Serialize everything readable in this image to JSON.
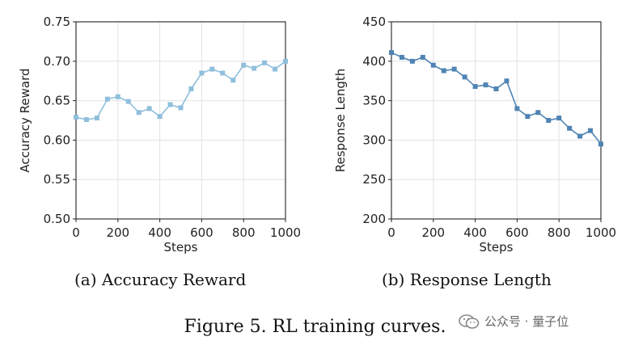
{
  "chart_data": [
    {
      "type": "line",
      "xlabel": "Steps",
      "ylabel": "Accuracy Reward",
      "xlim": [
        0,
        1000
      ],
      "ylim": [
        0.5,
        0.75
      ],
      "xticks": [
        0,
        200,
        400,
        600,
        800,
        1000
      ],
      "yticks": [
        0.5,
        0.55,
        0.6,
        0.65,
        0.7,
        0.75
      ],
      "ytick_labels": [
        "0.50",
        "0.55",
        "0.60",
        "0.65",
        "0.70",
        "0.75"
      ],
      "grid": true,
      "color": "#8fbfdc",
      "x": [
        0,
        50,
        100,
        150,
        200,
        250,
        300,
        350,
        400,
        450,
        500,
        550,
        600,
        650,
        700,
        750,
        800,
        850,
        900,
        950,
        1000
      ],
      "y": [
        0.629,
        0.626,
        0.628,
        0.652,
        0.655,
        0.649,
        0.635,
        0.64,
        0.63,
        0.645,
        0.641,
        0.665,
        0.685,
        0.69,
        0.685,
        0.676,
        0.695,
        0.691,
        0.698,
        0.69,
        0.7
      ]
    },
    {
      "type": "line",
      "xlabel": "Steps",
      "ylabel": "Response Length",
      "xlim": [
        0,
        1000
      ],
      "ylim": [
        200,
        450
      ],
      "xticks": [
        0,
        200,
        400,
        600,
        800,
        1000
      ],
      "yticks": [
        200,
        250,
        300,
        350,
        400,
        450
      ],
      "ytick_labels": [
        "200",
        "250",
        "300",
        "350",
        "400",
        "450"
      ],
      "grid": true,
      "color": "#4f84b4",
      "x": [
        0,
        50,
        100,
        150,
        200,
        250,
        300,
        350,
        400,
        450,
        500,
        550,
        600,
        650,
        700,
        750,
        800,
        850,
        900,
        950,
        1000
      ],
      "y": [
        411,
        405,
        400,
        405,
        395,
        388,
        390,
        380,
        368,
        370,
        365,
        375,
        340,
        330,
        335,
        325,
        328,
        315,
        305,
        312,
        295
      ]
    }
  ],
  "captions": {
    "a": "(a) Accuracy Reward",
    "b": "(b) Response Length",
    "figure": "Figure 5. RL training curves."
  },
  "watermark": {
    "text": "公众号 · 量子位",
    "icon": "wechat-icon"
  }
}
